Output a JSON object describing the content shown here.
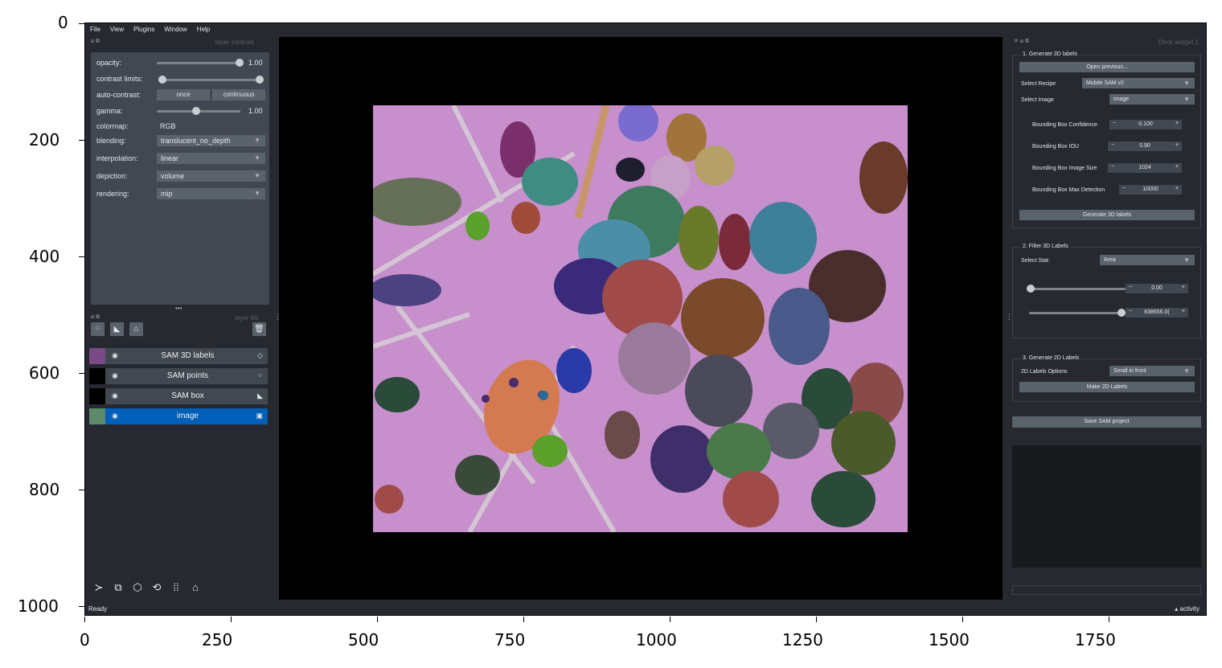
{
  "axes": {
    "yticks": [
      "0",
      "200",
      "400",
      "600",
      "800",
      "1000"
    ],
    "xticks": [
      "0",
      "250",
      "500",
      "750",
      "1000",
      "1250",
      "1500",
      "1750"
    ]
  },
  "menu": [
    "File",
    "View",
    "Plugins",
    "Window",
    "Help"
  ],
  "layer_controls": {
    "title": "layer controls",
    "opacity_label": "opacity:",
    "opacity_value": "1.00",
    "contrast_label": "contrast limits:",
    "autocontrast_label": "auto-contrast:",
    "once": "once",
    "continuous": "continuous",
    "gamma_label": "gamma:",
    "gamma_value": "1.00",
    "colormap_label": "colormap:",
    "colormap_value": "RGB",
    "blending_label": "blending:",
    "blending_value": "translucent_no_depth",
    "interpolation_label": "interpolation:",
    "interpolation_value": "linear",
    "depiction_label": "depiction:",
    "depiction_value": "volume",
    "rendering_label": "rendering:",
    "rendering_value": "mip"
  },
  "layer_list": {
    "title": "layer list",
    "layers": [
      {
        "name": "SAM 3D labels",
        "type_icon": "label-icon"
      },
      {
        "name": "SAM points",
        "type_icon": "points-icon"
      },
      {
        "name": "SAM box",
        "type_icon": "shapes-icon"
      },
      {
        "name": "image",
        "type_icon": "image-icon",
        "selected": true
      }
    ]
  },
  "dock": {
    "title": "Dock widget 1",
    "g1_title": "1. Generate 3D labels",
    "open_previous": "Open previous...",
    "select_recipe_label": "Select Recipe",
    "select_recipe_value": "Mobile SAM v2",
    "select_image_label": "Select Image",
    "select_image_value": "image",
    "bb_conf_label": "Bounding Box Confidence",
    "bb_conf_value": "0.100",
    "bb_iou_label": "Bounding Box IOU",
    "bb_iou_value": "0.90",
    "bb_size_label": "Bounding Box Image Size",
    "bb_size_value": "1024",
    "bb_max_label": "Bounding Box Max Detection",
    "bb_max_value": "10000",
    "generate_3d": "Generate 3D labels",
    "g2_title": "2. Filter 3D Labels",
    "select_stat_label": "Select Stat:",
    "select_stat_value": "Area",
    "min_value": "0.00",
    "max_value": "838656.0(",
    "g3_title": "3. Generate 2D Labels",
    "labels2d_label": "2D Labels Options",
    "labels2d_value": "Small in front",
    "make_2d": "Make 2D Labels",
    "save_project": "Save SAM project"
  },
  "status": "Ready",
  "activity": "activity",
  "colors": {
    "selected_layer": "#005fb8",
    "background": "#262930",
    "panel": "#414851"
  }
}
